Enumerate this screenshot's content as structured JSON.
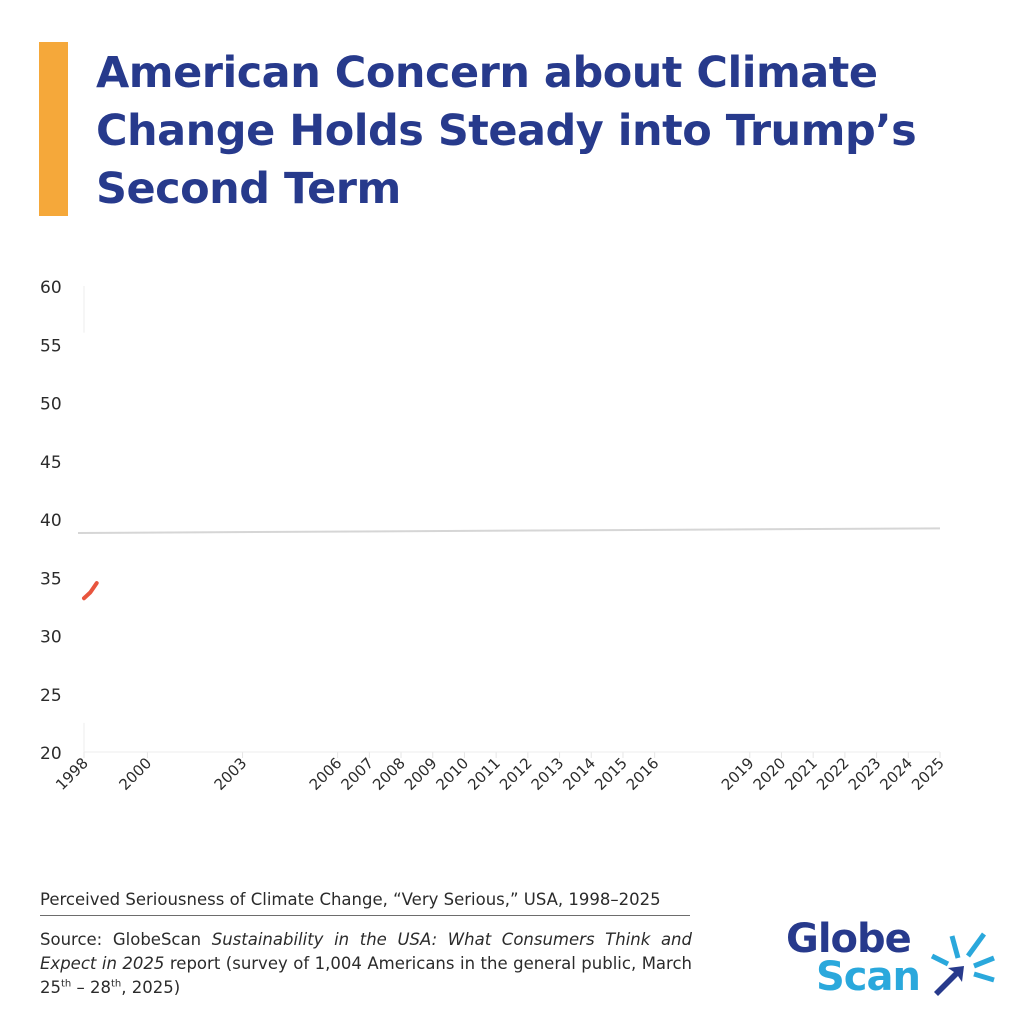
{
  "title_lines": [
    "American Concern about Climate",
    "Change Holds Steady into Trump’s",
    "Second Term"
  ],
  "caption": "Perceived Seriousness of Climate Change, “Very Serious,” USA, 1998–2025",
  "source": {
    "prefix": "Source: GlobeScan ",
    "report_title": "Sustainability in the USA: What Consumers Think and Expect in 2025",
    "middle": " report (survey of 1,004 Americans in the general public, March 25",
    "sup1": "th",
    "dash": " – 28",
    "sup2": "th",
    "suffix": ", 2025)"
  },
  "logo": {
    "line1": "Globe",
    "line2": "Scan",
    "icon": "starburst-arrow-icon"
  },
  "colors": {
    "title": "#273a8c",
    "accent_bar": "#f5a83a",
    "series": "#e8553e",
    "reference_line": "#d6d6d6",
    "logo_dark": "#273a8c",
    "logo_light": "#2aa8dc"
  },
  "chart_data": {
    "type": "line",
    "title": "",
    "xlabel": "",
    "ylabel": "",
    "ylim": [
      20,
      60
    ],
    "y_ticks": [
      "20",
      "25",
      "30",
      "35",
      "40",
      "45",
      "50",
      "55",
      "60"
    ],
    "x_ticks": [
      "1998",
      "2000",
      "2003",
      "2006",
      "2007",
      "2008",
      "2009",
      "2010",
      "2011",
      "2012",
      "2013",
      "2014",
      "2015",
      "2016",
      "2019",
      "2020",
      "2021",
      "2022",
      "2023",
      "2024",
      "2025"
    ],
    "x_positions": [
      1998,
      2000,
      2003,
      2006,
      2007,
      2008,
      2009,
      2010,
      2011,
      2012,
      2013,
      2014,
      2015,
      2016,
      2019,
      2020,
      2021,
      2022,
      2023,
      2024,
      2025
    ],
    "xlim": [
      1998,
      2025
    ],
    "grid": false,
    "legend": "none",
    "series": [
      {
        "x": [
          1998,
          1998.2,
          1998.4
        ],
        "values": [
          33.2,
          33.7,
          34.5
        ]
      }
    ],
    "reference_line": {
      "x": [
        1998,
        2025
      ],
      "values": [
        38.8,
        39.2
      ]
    }
  }
}
